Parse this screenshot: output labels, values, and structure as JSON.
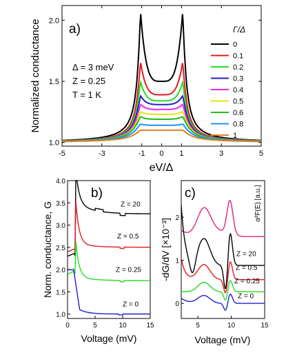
{
  "chart_data": [
    {
      "panel": "a)",
      "type": "line",
      "xlabel": "eV/Δ",
      "ylabel": "Normalized conductance",
      "xlim": [
        -5,
        5
      ],
      "ylim": [
        0.97,
        2.12
      ],
      "xticks": [
        "-5",
        "-3",
        "-1",
        "0",
        "1",
        "3",
        "5"
      ],
      "yticks": [
        "1.0",
        "1.5",
        "2.0"
      ],
      "annotations": [
        "Δ = 3 meV",
        "Z = 0.25",
        "T = 1 K"
      ],
      "legend_title": "Γ/Δ",
      "legend_position": "right",
      "series": [
        {
          "name": "0",
          "color": "#000000",
          "baseline": 1.5,
          "peak": 2.05,
          "center": 1.5
        },
        {
          "name": "0.1",
          "color": "#e41a1c",
          "baseline": 1.39,
          "peak": 1.65,
          "center": 1.39
        },
        {
          "name": "0.2",
          "color": "#22dd22",
          "baseline": 1.34,
          "peak": 1.49,
          "center": 1.34
        },
        {
          "name": "0.3",
          "color": "#1f1fcc",
          "baseline": 1.31,
          "peak": 1.38,
          "center": 1.31
        },
        {
          "name": "0.4",
          "color": "#ee22ee",
          "baseline": 1.27,
          "peak": 1.31,
          "center": 1.27
        },
        {
          "name": "0.5",
          "color": "#e6e600",
          "baseline": 1.23,
          "peak": 1.25,
          "center": 1.23
        },
        {
          "name": "0.6",
          "color": "#22bb22",
          "baseline": 1.19,
          "peak": 1.21,
          "center": 1.19
        },
        {
          "name": "0.8",
          "color": "#1e90ff",
          "baseline": 1.14,
          "peak": 1.15,
          "center": 1.14
        },
        {
          "name": "1",
          "color": "#e08020",
          "baseline": 1.1,
          "peak": 1.1,
          "center": 1.1
        }
      ]
    },
    {
      "panel": "b)",
      "type": "line",
      "xlabel": "Voltage (mV)",
      "ylabel": "Norm. conductance, G",
      "xlim": [
        0,
        15
      ],
      "ylim": [
        0.9,
        4.0
      ],
      "xticks": [
        "0",
        "5",
        "10",
        "15"
      ],
      "yticks": [
        "1.0",
        "1.5",
        "2.0",
        "2.5",
        "3.0",
        "3.5",
        "4.0"
      ],
      "series": [
        {
          "name": "Z = 20",
          "color": "#000000",
          "level": 3.25,
          "low": 2.3,
          "peak": 4.0
        },
        {
          "name": "Z = 0.5",
          "color": "#e41a1c",
          "level": 2.5,
          "low": 2.4,
          "peak": 3.45
        },
        {
          "name": "Z = 0.25",
          "color": "#22dd22",
          "level": 1.75,
          "low": 1.9,
          "peak": 2.55
        },
        {
          "name": "Z = 0",
          "color": "#1f1fcc",
          "level": 1.0,
          "low": 2.0,
          "peak": 2.0
        }
      ]
    },
    {
      "panel": "c)",
      "type": "line",
      "xlabel": "Voltage (mV)",
      "ylabel": "-dG/dV [×10⁻³]",
      "right_label": "α²F(E) [a.u.]",
      "xlim": [
        2.5,
        15
      ],
      "ylim": [
        -0.35,
        2.85
      ],
      "xticks": [
        "5",
        "10",
        "15"
      ],
      "yticks": [
        "0",
        "1",
        "2"
      ],
      "series": [
        {
          "name": "α²F(E)",
          "color": "#e0207f",
          "offset": 1.55
        },
        {
          "name": "Z = 20",
          "color": "#000000",
          "offset": 0.88
        },
        {
          "name": "Z = 0.5",
          "color": "#e41a1c",
          "offset": 0.55
        },
        {
          "name": "Z = 0.25",
          "color": "#22dd22",
          "offset": 0.27
        },
        {
          "name": "Z = 0",
          "color": "#1f1fcc",
          "offset": 0.0
        }
      ]
    }
  ]
}
